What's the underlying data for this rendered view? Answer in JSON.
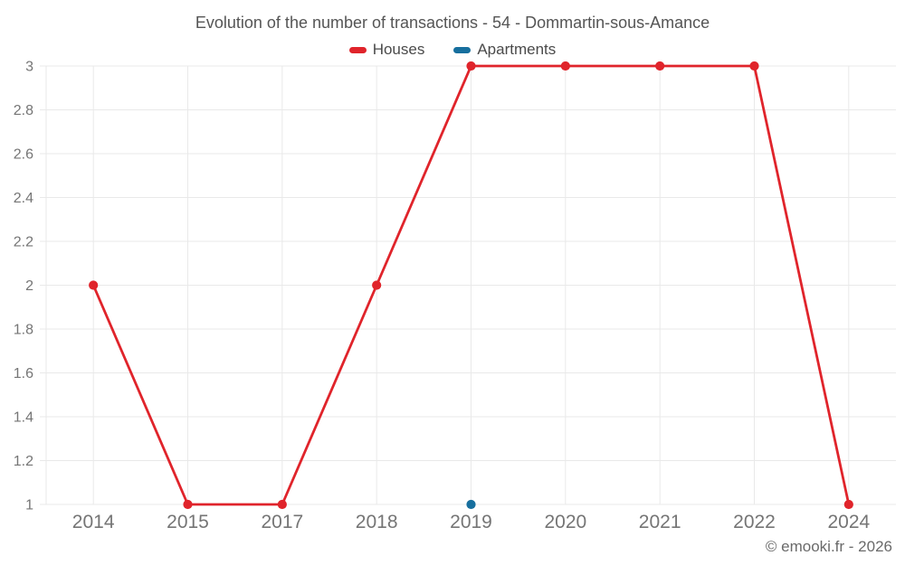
{
  "chart_data": {
    "type": "line",
    "title": "Evolution of the number of transactions - 54 - Dommartin-sous-Amance",
    "categories": [
      "2014",
      "2015",
      "2017",
      "2018",
      "2019",
      "2020",
      "2021",
      "2022",
      "2024"
    ],
    "series": [
      {
        "name": "Houses",
        "color": "#e0242b",
        "values": [
          2,
          1,
          1,
          2,
          3,
          3,
          3,
          3,
          1
        ]
      },
      {
        "name": "Apartments",
        "color": "#176f9e",
        "values": [
          null,
          null,
          null,
          null,
          1,
          null,
          null,
          null,
          null
        ]
      }
    ],
    "xlabel": "",
    "ylabel": "",
    "ylim": [
      1,
      3
    ],
    "yticks": [
      1,
      1.2,
      1.4,
      1.6,
      1.8,
      2,
      2.2,
      2.4,
      2.6,
      2.8,
      3
    ],
    "grid": true,
    "legend_position": "top"
  },
  "footer": {
    "copyright": "© emooki.fr - 2026"
  },
  "colors": {
    "background": "#ffffff",
    "grid": "#e9e9e9",
    "axis_label": "#757575",
    "title": "#555555",
    "legend_label": "#4a4a4a",
    "copyright": "#6a6a6a"
  }
}
